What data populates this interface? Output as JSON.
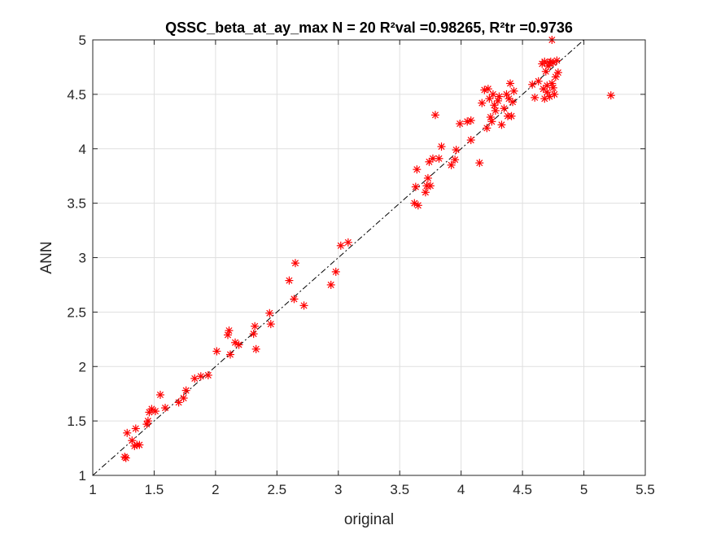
{
  "chart_data": {
    "type": "scatter",
    "title": "QSSC_beta_at_ay_max  N = 20 R²val =0.98265, R²tr =0.9736",
    "xlabel": "original",
    "ylabel": "ANN",
    "xlim": [
      1,
      5.5
    ],
    "ylim": [
      1,
      5
    ],
    "xticks": [
      1,
      1.5,
      2,
      2.5,
      3,
      3.5,
      4,
      4.5,
      5,
      5.5
    ],
    "xtick_labels": [
      "1",
      "1.5",
      "2",
      "2.5",
      "3",
      "3.5",
      "4",
      "4.5",
      "5",
      "5.5"
    ],
    "yticks": [
      1,
      1.5,
      2,
      2.5,
      3,
      3.5,
      4,
      4.5,
      5
    ],
    "ytick_labels": [
      "1",
      "1.5",
      "2",
      "2.5",
      "3",
      "3.5",
      "4",
      "4.5",
      "5"
    ],
    "grid": true,
    "reference_line": {
      "from": [
        1,
        1
      ],
      "to": [
        5,
        5
      ],
      "style": "dash-dot",
      "color": "#000000"
    },
    "marker": {
      "symbol": "asterisk",
      "color": "#ff0000"
    },
    "points": [
      [
        1.26,
        1.17
      ],
      [
        1.27,
        1.16
      ],
      [
        1.28,
        1.39
      ],
      [
        1.32,
        1.32
      ],
      [
        1.35,
        1.43
      ],
      [
        1.36,
        1.28
      ],
      [
        1.38,
        1.28
      ],
      [
        1.34,
        1.27
      ],
      [
        1.44,
        1.47
      ],
      [
        1.45,
        1.5
      ],
      [
        1.46,
        1.58
      ],
      [
        1.48,
        1.61
      ],
      [
        1.51,
        1.59
      ],
      [
        1.55,
        1.74
      ],
      [
        1.59,
        1.62
      ],
      [
        1.7,
        1.67
      ],
      [
        1.74,
        1.71
      ],
      [
        1.76,
        1.78
      ],
      [
        1.83,
        1.89
      ],
      [
        1.88,
        1.91
      ],
      [
        1.94,
        1.92
      ],
      [
        2.01,
        2.14
      ],
      [
        2.1,
        2.29
      ],
      [
        2.11,
        2.33
      ],
      [
        2.12,
        2.11
      ],
      [
        2.16,
        2.22
      ],
      [
        2.19,
        2.2
      ],
      [
        2.31,
        2.3
      ],
      [
        2.32,
        2.37
      ],
      [
        2.33,
        2.16
      ],
      [
        2.44,
        2.49
      ],
      [
        2.45,
        2.39
      ],
      [
        2.6,
        2.79
      ],
      [
        2.64,
        2.62
      ],
      [
        2.65,
        2.95
      ],
      [
        2.72,
        2.56
      ],
      [
        2.94,
        2.75
      ],
      [
        2.98,
        2.87
      ],
      [
        3.02,
        3.11
      ],
      [
        3.08,
        3.14
      ],
      [
        3.62,
        3.5
      ],
      [
        3.63,
        3.65
      ],
      [
        3.64,
        3.81
      ],
      [
        3.65,
        3.48
      ],
      [
        3.71,
        3.6
      ],
      [
        3.72,
        3.66
      ],
      [
        3.73,
        3.73
      ],
      [
        3.74,
        3.88
      ],
      [
        3.75,
        3.66
      ],
      [
        3.77,
        3.91
      ],
      [
        3.79,
        4.31
      ],
      [
        3.82,
        3.91
      ],
      [
        3.84,
        4.02
      ],
      [
        3.92,
        3.85
      ],
      [
        3.95,
        3.9
      ],
      [
        3.96,
        3.99
      ],
      [
        3.99,
        4.23
      ],
      [
        4.05,
        4.25
      ],
      [
        4.08,
        4.26
      ],
      [
        4.08,
        4.08
      ],
      [
        4.15,
        3.87
      ],
      [
        4.17,
        4.42
      ],
      [
        4.19,
        4.54
      ],
      [
        4.21,
        4.19
      ],
      [
        4.22,
        4.55
      ],
      [
        4.23,
        4.46
      ],
      [
        4.24,
        4.29
      ],
      [
        4.25,
        4.25
      ],
      [
        4.26,
        4.5
      ],
      [
        4.27,
        4.4
      ],
      [
        4.28,
        4.35
      ],
      [
        4.3,
        4.44
      ],
      [
        4.31,
        4.48
      ],
      [
        4.33,
        4.22
      ],
      [
        4.35,
        4.37
      ],
      [
        4.37,
        4.5
      ],
      [
        4.38,
        4.3
      ],
      [
        4.39,
        4.46
      ],
      [
        4.4,
        4.6
      ],
      [
        4.41,
        4.3
      ],
      [
        4.42,
        4.43
      ],
      [
        4.43,
        4.53
      ],
      [
        4.58,
        4.59
      ],
      [
        4.6,
        4.47
      ],
      [
        4.63,
        4.62
      ],
      [
        4.66,
        4.78
      ],
      [
        4.67,
        4.55
      ],
      [
        4.68,
        4.8
      ],
      [
        4.68,
        4.46
      ],
      [
        4.69,
        4.71
      ],
      [
        4.7,
        4.52
      ],
      [
        4.71,
        4.76
      ],
      [
        4.72,
        4.79
      ],
      [
        4.73,
        4.8
      ],
      [
        4.74,
        5.0
      ],
      [
        4.75,
        4.79
      ],
      [
        4.75,
        4.56
      ],
      [
        4.76,
        4.5
      ],
      [
        4.77,
        4.66
      ],
      [
        4.78,
        4.81
      ],
      [
        4.79,
        4.7
      ],
      [
        4.72,
        4.48
      ],
      [
        4.74,
        4.6
      ],
      [
        4.7,
        4.58
      ],
      [
        5.22,
        4.49
      ]
    ]
  }
}
